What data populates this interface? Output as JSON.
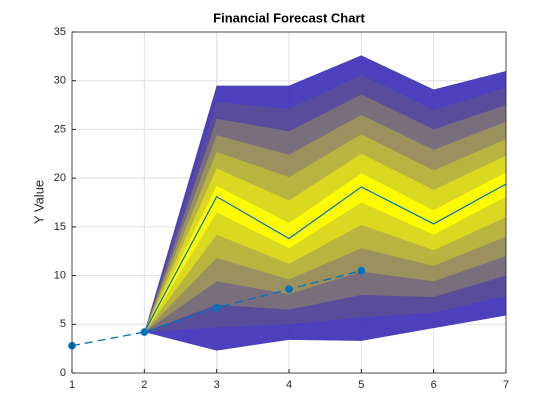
{
  "chart_data": {
    "type": "fan",
    "title": "Financial Forecast Chart",
    "ylabel": "Y Value",
    "xlim": [
      1,
      7
    ],
    "ylim": [
      0,
      35
    ],
    "xticks": [
      1,
      2,
      3,
      4,
      5,
      6,
      7
    ],
    "yticks": [
      0,
      5,
      10,
      15,
      20,
      25,
      30,
      35
    ],
    "grid": true,
    "history": {
      "x": [
        1,
        2,
        3,
        4,
        5
      ],
      "values": [
        2.8,
        4.2,
        6.7,
        8.6,
        10.5
      ],
      "color": "#0072bd"
    },
    "forecast_x": [
      2,
      3,
      4,
      5,
      6,
      7
    ],
    "median": {
      "values": [
        4.2,
        18.1,
        13.8,
        19.1,
        15.3,
        19.4
      ],
      "color": "#0072bd"
    },
    "bands": [
      {
        "color": "#3a2bb5",
        "upper": [
          4.2,
          29.5,
          29.5,
          32.6,
          29.1,
          31.0
        ],
        "lower": [
          4.2,
          2.3,
          3.4,
          3.3,
          4.6,
          5.9
        ]
      },
      {
        "color": "#5b4e97",
        "upper": [
          4.2,
          27.8,
          27.1,
          30.6,
          27.0,
          29.3
        ],
        "lower": [
          4.2,
          4.7,
          5.0,
          5.7,
          6.2,
          7.9
        ]
      },
      {
        "color": "#7c7279",
        "upper": [
          4.2,
          26.1,
          24.8,
          28.6,
          25.0,
          27.5
        ],
        "lower": [
          4.2,
          7.0,
          6.5,
          8.0,
          7.8,
          10.0
        ]
      },
      {
        "color": "#9d955b",
        "upper": [
          4.2,
          24.4,
          22.4,
          26.5,
          22.9,
          25.8
        ],
        "lower": [
          4.2,
          9.4,
          8.1,
          10.4,
          9.4,
          12.0
        ]
      },
      {
        "color": "#bdb83c",
        "upper": [
          4.2,
          22.7,
          20.1,
          24.5,
          20.8,
          24.0
        ],
        "lower": [
          4.2,
          11.8,
          9.6,
          12.8,
          11.0,
          14.0
        ]
      },
      {
        "color": "#dedc1e",
        "upper": [
          4.2,
          21.0,
          17.7,
          22.5,
          18.8,
          22.3
        ],
        "lower": [
          4.2,
          14.2,
          11.2,
          15.2,
          12.6,
          16.0
        ]
      },
      {
        "color": "#ffff00",
        "upper": [
          4.2,
          19.2,
          15.4,
          20.5,
          16.7,
          20.6
        ],
        "lower": [
          4.2,
          16.5,
          12.8,
          17.5,
          14.2,
          18.1
        ]
      }
    ]
  }
}
